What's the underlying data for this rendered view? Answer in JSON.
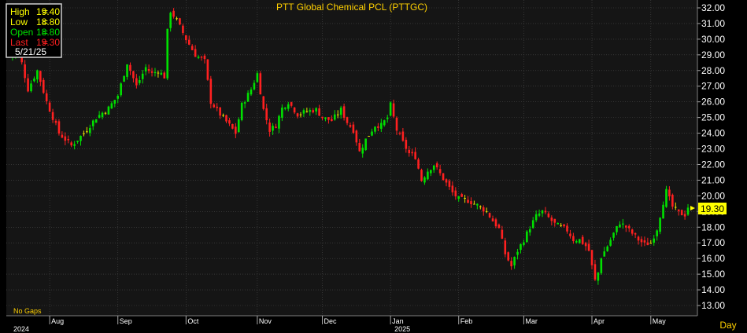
{
  "colors": {
    "background": "#000000",
    "plot_bg": "#151515",
    "grid": "#4a4a4a",
    "up": "#00e000",
    "down": "#ff2020",
    "doji": "#e8e000",
    "title": "#ffd000",
    "axis_text": "#ffffff",
    "last_box": "#ffff00"
  },
  "info_box": {
    "high_label": "High",
    "high_value": "19.40",
    "low_label": "Low",
    "low_value": "18.80",
    "open_label": "Open",
    "open_value": "18.80",
    "last_label": "Last",
    "last_value": "19.30",
    "eq": "=",
    "date": "5/21/25"
  },
  "footer": {
    "gaps_note": "No Gaps",
    "period_label": "Day",
    "last_marker": "19.30"
  },
  "chart_data": {
    "type": "candlestick",
    "title": "PTT Global Chemical PCL (PTTGC)",
    "ylim": [
      12.5,
      32.3
    ],
    "y_ticks": [
      "13.00",
      "14.00",
      "15.00",
      "16.00",
      "17.00",
      "18.00",
      "19.00",
      "20.00",
      "21.00",
      "22.00",
      "23.00",
      "24.00",
      "25.00",
      "26.00",
      "27.00",
      "28.00",
      "29.00",
      "30.00",
      "31.00",
      "32.00"
    ],
    "x_months": [
      {
        "label": "Aug",
        "index": 13
      },
      {
        "label": "Sep",
        "index": 35
      },
      {
        "label": "Oct",
        "index": 57
      },
      {
        "label": "Nov",
        "index": 80
      },
      {
        "label": "Dec",
        "index": 101
      },
      {
        "label": "Jan",
        "index": 123
      },
      {
        "label": "Feb",
        "index": 145
      },
      {
        "label": "Mar",
        "index": 166
      },
      {
        "label": "Apr",
        "index": 188
      },
      {
        "label": "May",
        "index": 207
      }
    ],
    "x_years": [
      {
        "label": "2024",
        "index": 0
      },
      {
        "label": "2025",
        "index": 123
      }
    ],
    "close_path": [
      [
        0,
        28.9
      ],
      [
        3,
        29.3
      ],
      [
        6,
        26.8
      ],
      [
        9,
        28.0
      ],
      [
        12,
        26.0
      ],
      [
        16,
        24.0
      ],
      [
        20,
        23.2
      ],
      [
        24,
        24.0
      ],
      [
        28,
        25.0
      ],
      [
        32,
        25.6
      ],
      [
        35,
        26.4
      ],
      [
        38,
        28.5
      ],
      [
        41,
        27.0
      ],
      [
        44,
        28.2
      ],
      [
        46,
        27.8
      ],
      [
        48,
        28.0
      ],
      [
        50,
        27.6
      ],
      [
        51,
        30.5
      ],
      [
        52,
        31.8
      ],
      [
        54,
        31.2
      ],
      [
        57,
        30.0
      ],
      [
        60,
        29.0
      ],
      [
        63,
        28.6
      ],
      [
        65,
        26.0
      ],
      [
        68,
        25.2
      ],
      [
        71,
        24.5
      ],
      [
        73,
        24.0
      ],
      [
        75,
        25.8
      ],
      [
        78,
        26.8
      ],
      [
        80,
        27.8
      ],
      [
        82,
        25.5
      ],
      [
        84,
        24.2
      ],
      [
        86,
        24.5
      ],
      [
        88,
        25.6
      ],
      [
        90,
        26.0
      ],
      [
        93,
        25.2
      ],
      [
        96,
        25.4
      ],
      [
        99,
        25.5
      ],
      [
        101,
        25.0
      ],
      [
        104,
        24.8
      ],
      [
        107,
        25.5
      ],
      [
        109,
        24.7
      ],
      [
        111,
        24.2
      ],
      [
        113,
        22.8
      ],
      [
        115,
        23.6
      ],
      [
        118,
        24.5
      ],
      [
        120,
        24.5
      ],
      [
        122,
        25.0
      ],
      [
        123,
        25.8
      ],
      [
        125,
        24.2
      ],
      [
        127,
        23.4
      ],
      [
        129,
        22.7
      ],
      [
        131,
        22.5
      ],
      [
        133,
        21.0
      ],
      [
        135,
        21.6
      ],
      [
        137,
        22.0
      ],
      [
        139,
        21.4
      ],
      [
        141,
        20.8
      ],
      [
        143,
        20.2
      ],
      [
        145,
        19.8
      ],
      [
        148,
        19.7
      ],
      [
        151,
        19.4
      ],
      [
        154,
        19.0
      ],
      [
        156,
        18.4
      ],
      [
        158,
        17.9
      ],
      [
        160,
        16.3
      ],
      [
        162,
        15.5
      ],
      [
        164,
        16.5
      ],
      [
        166,
        17.2
      ],
      [
        168,
        18.0
      ],
      [
        170,
        18.7
      ],
      [
        172,
        19.0
      ],
      [
        174,
        18.6
      ],
      [
        176,
        18.2
      ],
      [
        178,
        18.0
      ],
      [
        180,
        17.8
      ],
      [
        182,
        17.2
      ],
      [
        184,
        17.2
      ],
      [
        186,
        16.8
      ],
      [
        187,
        16.5
      ],
      [
        188,
        15.5
      ],
      [
        189,
        14.6
      ],
      [
        190,
        15.1
      ],
      [
        191,
        16.1
      ],
      [
        193,
        16.8
      ],
      [
        195,
        17.6
      ],
      [
        197,
        18.3
      ],
      [
        199,
        18.0
      ],
      [
        201,
        17.6
      ],
      [
        203,
        17.2
      ],
      [
        205,
        16.9
      ],
      [
        207,
        17.0
      ],
      [
        209,
        17.9
      ],
      [
        211,
        19.6
      ],
      [
        212,
        20.3
      ],
      [
        214,
        19.3
      ],
      [
        216,
        18.9
      ],
      [
        218,
        18.8
      ],
      [
        219,
        19.3
      ]
    ]
  }
}
